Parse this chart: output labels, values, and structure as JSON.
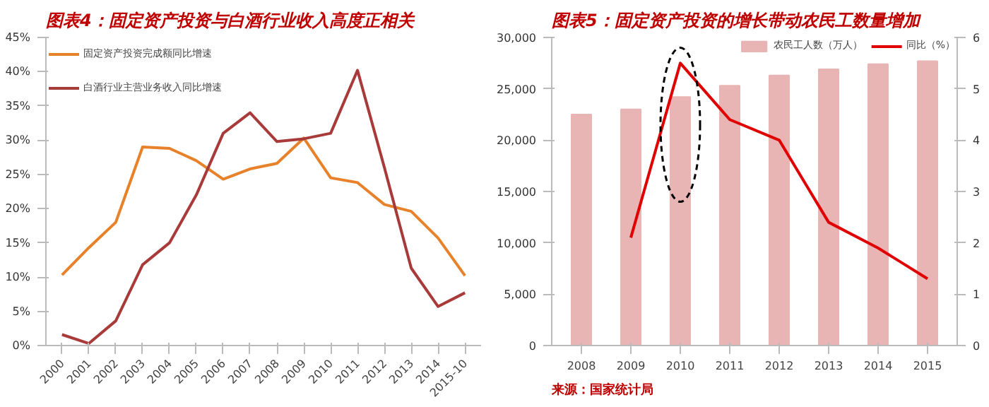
{
  "chart_data": [
    {
      "type": "line",
      "title": "图表4：固定资产投资与白酒行业收入高度正相关",
      "categories": [
        "2000",
        "2001",
        "2002",
        "2003",
        "2004",
        "2005",
        "2006",
        "2007",
        "2008",
        "2009",
        "2010",
        "2011",
        "2012",
        "2013",
        "2014",
        "2015-10"
      ],
      "series": [
        {
          "name": "固定资产投资完成额同比增速",
          "color": "#e8822a",
          "values": [
            10.3,
            14.3,
            18,
            29,
            28.8,
            27,
            24.3,
            25.8,
            26.6,
            30.3,
            24.5,
            23.8,
            20.6,
            19.6,
            15.7,
            10.2
          ]
        },
        {
          "name": "白酒行业主营业务收入同比增速",
          "color": "#a83a3a",
          "values": [
            1.6,
            0.3,
            3.6,
            11.8,
            15,
            22,
            31,
            34,
            29.8,
            30.2,
            31,
            40.2,
            26,
            11.3,
            5.7,
            7.7
          ]
        }
      ],
      "ylim": [
        0,
        45
      ],
      "yticks": [
        {
          "value": 0,
          "label": "0%"
        },
        {
          "value": 5,
          "label": "5%"
        },
        {
          "value": 10,
          "label": "10%"
        },
        {
          "value": 15,
          "label": "15%"
        },
        {
          "value": 20,
          "label": "20%"
        },
        {
          "value": 25,
          "label": "25%"
        },
        {
          "value": 30,
          "label": "30%"
        },
        {
          "value": 35,
          "label": "35%"
        },
        {
          "value": 40,
          "label": "40%"
        },
        {
          "value": 45,
          "label": "45%"
        }
      ],
      "legend": "top left"
    },
    {
      "type": "bar",
      "title": "图表5：固定资产投资的增长带动农民工数量增加",
      "categories": [
        "2008",
        "2009",
        "2010",
        "2011",
        "2012",
        "2013",
        "2014",
        "2015"
      ],
      "series": [
        {
          "name": "农民工人数（万人）",
          "type": "bar",
          "color": "#e8b4b4",
          "values": [
            22500,
            23000,
            24200,
            25300,
            26300,
            26900,
            27400,
            27700
          ]
        },
        {
          "name": "同比（%）",
          "type": "line",
          "axis": "y2",
          "color": "#e00000",
          "values": [
            null,
            2.1,
            5.5,
            4.4,
            4.0,
            2.4,
            1.9,
            1.3
          ]
        }
      ],
      "ylim": [
        0,
        30000
      ],
      "yticks": [
        0,
        {
          "value": 5000,
          "label": "5,000"
        },
        {
          "value": 10000,
          "label": "10,000"
        },
        {
          "value": 15000,
          "label": "15,000"
        },
        {
          "value": 20000,
          "label": "20,000"
        },
        {
          "value": 25000,
          "label": "25,000"
        },
        {
          "value": 30000,
          "label": "30,000"
        }
      ],
      "y2lim": [
        0,
        6
      ],
      "y2ticks": [
        0,
        1,
        2,
        3,
        4,
        5,
        6
      ],
      "legend": "top right",
      "annotations": [
        "来源：国家统计局"
      ]
    }
  ]
}
